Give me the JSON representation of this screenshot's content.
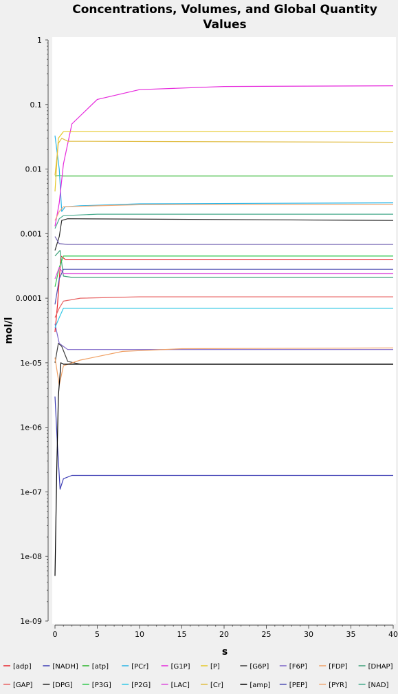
{
  "chart_data": {
    "type": "line",
    "title_lines": [
      "Concentrations, Volumes, and Global Quantity",
      "Values"
    ],
    "xlabel": "s",
    "ylabel": "mol/l",
    "xlim": [
      0,
      40
    ],
    "ylim": [
      1e-09,
      1
    ],
    "y_scale": "log",
    "x_ticks": [
      "0",
      "5",
      "10",
      "15",
      "20",
      "25",
      "30",
      "35",
      "40"
    ],
    "x_tick_values": [
      0,
      5,
      10,
      15,
      20,
      25,
      30,
      35,
      40
    ],
    "y_ticks": [
      "1",
      "0.1",
      "0.01",
      "0.001",
      "0.0001",
      "1e-05",
      "1e-06",
      "1e-07",
      "1e-08",
      "1e-09"
    ],
    "y_tick_values": [
      1,
      0.1,
      0.01,
      0.001,
      0.0001,
      1e-05,
      1e-06,
      1e-07,
      1e-08,
      1e-09
    ],
    "grid": false,
    "legend_position": "bottom",
    "series": [
      {
        "name": "[adp]",
        "color": "#e8242c",
        "points": [
          [
            0,
            3e-05
          ],
          [
            0.3,
            8e-05
          ],
          [
            0.7,
            0.00045
          ],
          [
            1.2,
            0.0004
          ],
          [
            2,
            0.0004
          ],
          [
            40,
            0.0004
          ]
        ]
      },
      {
        "name": "[NADH]",
        "color": "#3c3cb4",
        "points": [
          [
            0,
            3e-06
          ],
          [
            0.3,
            5e-07
          ],
          [
            0.6,
            1.1e-07
          ],
          [
            1,
            1.6e-07
          ],
          [
            2,
            1.8e-07
          ],
          [
            40,
            1.8e-07
          ]
        ]
      },
      {
        "name": "[atp]",
        "color": "#28b428",
        "points": [
          [
            0,
            0.0078
          ],
          [
            0.5,
            0.0079
          ],
          [
            1,
            0.0078
          ],
          [
            40,
            0.0078
          ]
        ]
      },
      {
        "name": "[PCr]",
        "color": "#28b4e6",
        "points": [
          [
            0,
            0.033
          ],
          [
            0.5,
            0.01
          ],
          [
            0.8,
            0.0022
          ],
          [
            1.2,
            0.0026
          ],
          [
            3,
            0.0027
          ],
          [
            10,
            0.0029
          ],
          [
            40,
            0.003
          ]
        ]
      },
      {
        "name": "[G1P]",
        "color": "#e628dc",
        "points": [
          [
            0,
            0.0013
          ],
          [
            0.5,
            0.003
          ],
          [
            1,
            0.012
          ],
          [
            2,
            0.05
          ],
          [
            5,
            0.12
          ],
          [
            10,
            0.17
          ],
          [
            20,
            0.19
          ],
          [
            40,
            0.195
          ]
        ]
      },
      {
        "name": "[P]",
        "color": "#e6c828",
        "points": [
          [
            0,
            0.0045
          ],
          [
            0.4,
            0.03
          ],
          [
            1,
            0.038
          ],
          [
            3,
            0.038
          ],
          [
            40,
            0.038
          ]
        ]
      },
      {
        "name": "[G6P]",
        "color": "#3c3c3c",
        "points": [
          [
            0,
            1e-05
          ],
          [
            0.4,
            2e-05
          ],
          [
            0.8,
            1.8e-05
          ],
          [
            1.5,
            1.05e-05
          ],
          [
            3,
            9.5e-06
          ],
          [
            40,
            9.5e-06
          ]
        ]
      },
      {
        "name": "[F6P]",
        "color": "#7c64c8",
        "points": [
          [
            0,
            4e-05
          ],
          [
            0.5,
            2e-05
          ],
          [
            1.5,
            1.6e-05
          ],
          [
            40,
            1.6e-05
          ]
        ]
      },
      {
        "name": "[FDP]",
        "color": "#f0a064",
        "points": [
          [
            0,
            1.2e-05
          ],
          [
            0.5,
            4.5e-06
          ],
          [
            1,
            9e-06
          ],
          [
            3,
            1.1e-05
          ],
          [
            8,
            1.5e-05
          ],
          [
            15,
            1.65e-05
          ],
          [
            40,
            1.7e-05
          ]
        ]
      },
      {
        "name": "[DHAP]",
        "color": "#3ca078",
        "points": [
          [
            0,
            0.00045
          ],
          [
            0.6,
            0.00055
          ],
          [
            1,
            0.00022
          ],
          [
            2,
            0.00021
          ],
          [
            40,
            0.00021
          ]
        ]
      },
      {
        "name": "[GAP]",
        "color": "#e86464",
        "points": [
          [
            0,
            5e-05
          ],
          [
            0.5,
            7e-05
          ],
          [
            1,
            9e-05
          ],
          [
            3,
            0.0001
          ],
          [
            10,
            0.000105
          ],
          [
            40,
            0.000105
          ]
        ]
      },
      {
        "name": "[DPG]",
        "color": "#282828",
        "points": [
          [
            0,
            0.00055
          ],
          [
            0.5,
            0.0009
          ],
          [
            0.8,
            0.0016
          ],
          [
            1.5,
            0.0017
          ],
          [
            40,
            0.0016
          ]
        ]
      },
      {
        "name": "[P3G]",
        "color": "#32c850",
        "points": [
          [
            0,
            0.00015
          ],
          [
            0.5,
            0.0003
          ],
          [
            1,
            0.00045
          ],
          [
            40,
            0.00045
          ]
        ]
      },
      {
        "name": "[P2G]",
        "color": "#32c8e6",
        "points": [
          [
            0,
            3.5e-05
          ],
          [
            0.5,
            5e-05
          ],
          [
            1,
            7e-05
          ],
          [
            40,
            7e-05
          ]
        ]
      },
      {
        "name": "[LAC]",
        "color": "#dc50dc",
        "points": [
          [
            0,
            0.0002
          ],
          [
            0.5,
            0.0003
          ],
          [
            1,
            0.00024
          ],
          [
            40,
            0.00024
          ]
        ]
      },
      {
        "name": "[Cr]",
        "color": "#e1be46",
        "points": [
          [
            0,
            0.008
          ],
          [
            0.4,
            0.025
          ],
          [
            0.8,
            0.03
          ],
          [
            1.5,
            0.027
          ],
          [
            40,
            0.026
          ]
        ]
      },
      {
        "name": "[amp]",
        "color": "#000000",
        "points": [
          [
            0,
            5e-09
          ],
          [
            0.2,
            2e-07
          ],
          [
            0.4,
            3e-06
          ],
          [
            0.7,
            1e-05
          ],
          [
            1,
            9.5e-06
          ],
          [
            40,
            9.5e-06
          ]
        ]
      },
      {
        "name": "[PEP]",
        "color": "#5050b4",
        "points": [
          [
            0,
            8e-05
          ],
          [
            0.5,
            0.0002
          ],
          [
            1,
            0.00028
          ],
          [
            40,
            0.00028
          ]
        ]
      },
      {
        "name": "[PYR]",
        "color": "#f0aa78",
        "points": [
          [
            0,
            0.0016
          ],
          [
            0.5,
            0.0022
          ],
          [
            1,
            0.0026
          ],
          [
            5,
            0.0027
          ],
          [
            10,
            0.0028
          ],
          [
            40,
            0.0028
          ]
        ]
      },
      {
        "name": "[NAD]",
        "color": "#46aa8c",
        "points": [
          [
            0,
            0.0012
          ],
          [
            0.5,
            0.0017
          ],
          [
            1,
            0.0019
          ],
          [
            5,
            0.002
          ],
          [
            40,
            0.002
          ]
        ]
      },
      {
        "name": "",
        "color": "#7060b0",
        "points": [
          [
            0,
            0.0009
          ],
          [
            0.5,
            0.0007
          ],
          [
            1.5,
            0.00068
          ],
          [
            40,
            0.00068
          ]
        ]
      }
    ]
  }
}
